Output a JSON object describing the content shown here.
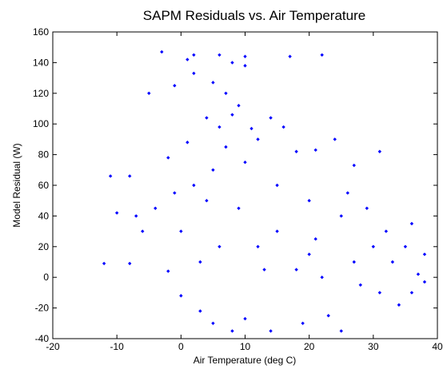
{
  "chart_data": {
    "type": "scatter",
    "title": "SAPM Residuals vs. Air Temperature",
    "xlabel": "Air Temperature (deg C)",
    "ylabel": "Model Residual (W)",
    "xlim": [
      -20,
      40
    ],
    "ylim": [
      -40,
      160
    ],
    "xticks": [
      -20,
      -10,
      0,
      10,
      20,
      30,
      40
    ],
    "yticks": [
      -40,
      -20,
      0,
      20,
      40,
      60,
      80,
      100,
      120,
      140,
      160
    ],
    "xtick_labels": [
      "-20",
      "-10",
      "0",
      "10",
      "20",
      "30",
      "40"
    ],
    "ytick_labels": [
      "-40",
      "-20",
      "0",
      "20",
      "40",
      "60",
      "80",
      "100",
      "120",
      "140",
      "160"
    ],
    "marker": "diamond",
    "color": "#0000ff",
    "grid": false,
    "box": true,
    "points": [
      [
        -3,
        147
      ],
      [
        1,
        142
      ],
      [
        2,
        145
      ],
      [
        6,
        145
      ],
      [
        8,
        140
      ],
      [
        10,
        144
      ],
      [
        10,
        138
      ],
      [
        17,
        144
      ],
      [
        22,
        145
      ],
      [
        -1,
        125
      ],
      [
        2,
        133
      ],
      [
        5,
        127
      ],
      [
        7,
        120
      ],
      [
        -5,
        120
      ],
      [
        9,
        112
      ],
      [
        8,
        106
      ],
      [
        4,
        104
      ],
      [
        6,
        98
      ],
      [
        11,
        97
      ],
      [
        16,
        98
      ],
      [
        14,
        104
      ],
      [
        24,
        90
      ],
      [
        21,
        83
      ],
      [
        31,
        82
      ],
      [
        27,
        73
      ],
      [
        -8,
        66
      ],
      [
        -11,
        66
      ],
      [
        -10,
        42
      ],
      [
        -12,
        9
      ],
      [
        -8,
        9
      ],
      [
        -2,
        4
      ],
      [
        0,
        -12
      ],
      [
        3,
        -22
      ],
      [
        5,
        -30
      ],
      [
        8,
        -35
      ],
      [
        10,
        -27
      ],
      [
        14,
        -35
      ],
      [
        19,
        -30
      ],
      [
        23,
        -25
      ],
      [
        25,
        -35
      ],
      [
        34,
        -18
      ],
      [
        36,
        -10
      ],
      [
        38,
        -3
      ],
      [
        37,
        2
      ],
      [
        35,
        20
      ],
      [
        36,
        35
      ],
      [
        38,
        15
      ],
      [
        2,
        60
      ],
      [
        5,
        70
      ],
      [
        10,
        75
      ],
      [
        15,
        60
      ],
      [
        20,
        50
      ],
      [
        25,
        40
      ],
      [
        30,
        20
      ],
      [
        33,
        10
      ],
      [
        0,
        30
      ],
      [
        -4,
        45
      ],
      [
        -6,
        30
      ],
      [
        3,
        10
      ],
      [
        12,
        20
      ],
      [
        18,
        5
      ],
      [
        22,
        0
      ],
      [
        28,
        -5
      ],
      [
        31,
        -10
      ],
      [
        7,
        85
      ],
      [
        12,
        90
      ],
      [
        18,
        82
      ],
      [
        -2,
        78
      ],
      [
        1,
        88
      ],
      [
        26,
        55
      ],
      [
        29,
        45
      ],
      [
        32,
        30
      ],
      [
        27,
        10
      ],
      [
        20,
        15
      ],
      [
        15,
        30
      ],
      [
        9,
        45
      ],
      [
        4,
        50
      ],
      [
        -1,
        55
      ],
      [
        -7,
        40
      ],
      [
        6,
        20
      ],
      [
        13,
        5
      ],
      [
        21,
        25
      ]
    ]
  }
}
